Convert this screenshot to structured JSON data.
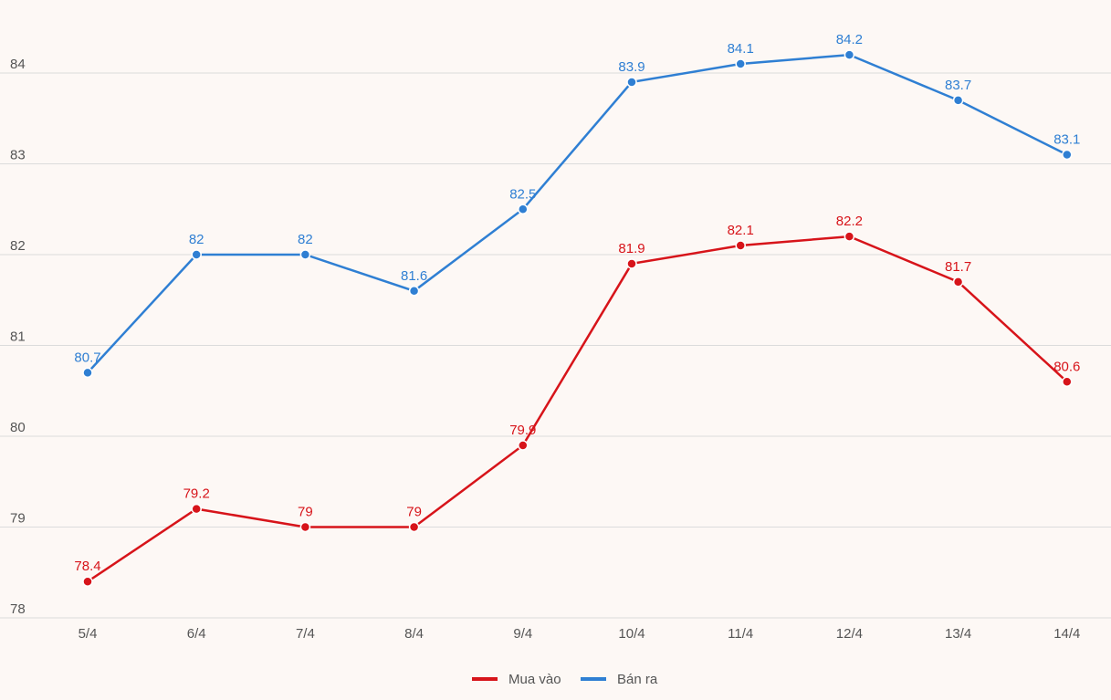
{
  "chart_data": {
    "type": "line",
    "categories": [
      "5/4",
      "6/4",
      "7/4",
      "8/4",
      "9/4",
      "10/4",
      "11/4",
      "12/4",
      "13/4",
      "14/4"
    ],
    "series": [
      {
        "name": "Mua vào",
        "color": "#d7141a",
        "values": [
          78.4,
          79.2,
          79,
          79,
          79.9,
          81.9,
          82.1,
          82.2,
          81.7,
          80.6
        ],
        "labels": [
          "78.4",
          "79.2",
          "79",
          "79",
          "79.9",
          "81.9",
          "82.1",
          "82.2",
          "81.7",
          "80.6"
        ]
      },
      {
        "name": "Bán ra",
        "color": "#2f7fd3",
        "values": [
          80.7,
          82,
          82,
          81.6,
          82.5,
          83.9,
          84.1,
          84.2,
          83.7,
          83.1
        ],
        "labels": [
          "80.7",
          "82",
          "82",
          "81.6",
          "82.5",
          "83.9",
          "84.1",
          "84.2",
          "83.7",
          "83.1"
        ]
      }
    ],
    "yticks": [
      78,
      79,
      80,
      81,
      82,
      83,
      84
    ],
    "ytick_labels": [
      "78",
      "79",
      "80",
      "81",
      "82",
      "83",
      "84"
    ],
    "ylim": [
      78,
      84
    ],
    "grid": true,
    "legend_position": "bottom-center",
    "title": "",
    "xlabel": "",
    "ylabel": ""
  }
}
